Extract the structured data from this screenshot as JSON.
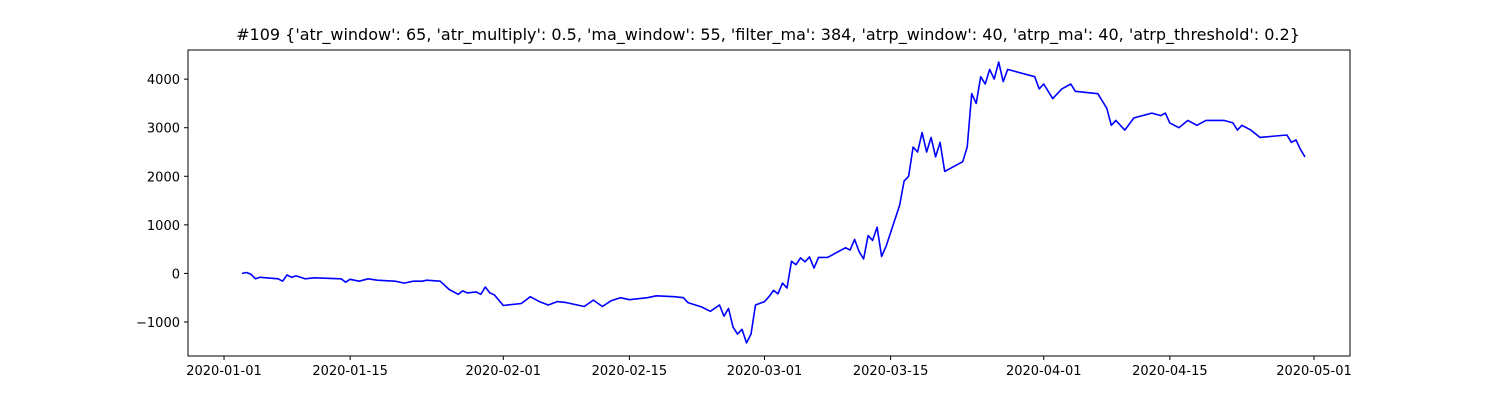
{
  "chart_data": {
    "type": "line",
    "title": "#109 {'atr_window': 65, 'atr_multiply': 0.5, 'ma_window': 55, 'filter_ma': 384, 'atrp_window': 40, 'atrp_ma': 40, 'atrp_threshold': 0.2}",
    "xlabel": "",
    "ylabel": "",
    "xlim": [
      "2019-12-28",
      "2020-05-05"
    ],
    "ylim": [
      -1700,
      4600
    ],
    "x_ticks": [
      "2020-01-01",
      "2020-01-15",
      "2020-02-01",
      "2020-02-15",
      "2020-03-01",
      "2020-03-15",
      "2020-04-01",
      "2020-04-15",
      "2020-05-01"
    ],
    "y_ticks": [
      -1000,
      0,
      1000,
      2000,
      3000,
      4000
    ],
    "y_tick_labels": [
      "−1000",
      "0",
      "1000",
      "2000",
      "3000",
      "4000"
    ],
    "grid": false,
    "series": [
      {
        "color": "#0000ff",
        "points": [
          [
            "2020-01-03",
            0
          ],
          [
            "2020-01-03T12",
            20
          ],
          [
            "2020-01-04",
            -20
          ],
          [
            "2020-01-04T12",
            -110
          ],
          [
            "2020-01-05",
            -80
          ],
          [
            "2020-01-07",
            -110
          ],
          [
            "2020-01-07T12",
            -160
          ],
          [
            "2020-01-08",
            -30
          ],
          [
            "2020-01-08T12",
            -80
          ],
          [
            "2020-01-09",
            -50
          ],
          [
            "2020-01-10",
            -110
          ],
          [
            "2020-01-11",
            -90
          ],
          [
            "2020-01-14",
            -110
          ],
          [
            "2020-01-14T12",
            -180
          ],
          [
            "2020-01-15",
            -120
          ],
          [
            "2020-01-16",
            -160
          ],
          [
            "2020-01-17",
            -110
          ],
          [
            "2020-01-18",
            -140
          ],
          [
            "2020-01-20",
            -160
          ],
          [
            "2020-01-21",
            -200
          ],
          [
            "2020-01-22",
            -160
          ],
          [
            "2020-01-23",
            -160
          ],
          [
            "2020-01-23T12",
            -140
          ],
          [
            "2020-01-25",
            -160
          ],
          [
            "2020-01-26",
            -330
          ],
          [
            "2020-01-27",
            -430
          ],
          [
            "2020-01-27T12",
            -360
          ],
          [
            "2020-01-28",
            -400
          ],
          [
            "2020-01-29",
            -380
          ],
          [
            "2020-01-29T12",
            -430
          ],
          [
            "2020-01-30",
            -280
          ],
          [
            "2020-01-30T12",
            -400
          ],
          [
            "2020-01-31",
            -440
          ],
          [
            "2020-02-01",
            -660
          ],
          [
            "2020-02-03",
            -620
          ],
          [
            "2020-02-04",
            -480
          ],
          [
            "2020-02-05",
            -580
          ],
          [
            "2020-02-06",
            -650
          ],
          [
            "2020-02-07",
            -580
          ],
          [
            "2020-02-08",
            -600
          ],
          [
            "2020-02-10",
            -680
          ],
          [
            "2020-02-11",
            -550
          ],
          [
            "2020-02-12",
            -680
          ],
          [
            "2020-02-13",
            -560
          ],
          [
            "2020-02-14",
            -500
          ],
          [
            "2020-02-15",
            -540
          ],
          [
            "2020-02-17",
            -500
          ],
          [
            "2020-02-18",
            -460
          ],
          [
            "2020-02-20",
            -480
          ],
          [
            "2020-02-21",
            -500
          ],
          [
            "2020-02-21T12",
            -600
          ],
          [
            "2020-02-23",
            -690
          ],
          [
            "2020-02-24",
            -780
          ],
          [
            "2020-02-25",
            -650
          ],
          [
            "2020-02-25T12",
            -880
          ],
          [
            "2020-02-26",
            -720
          ],
          [
            "2020-02-26T12",
            -1100
          ],
          [
            "2020-02-27",
            -1250
          ],
          [
            "2020-02-27T12",
            -1150
          ],
          [
            "2020-02-28",
            -1430
          ],
          [
            "2020-02-28T12",
            -1250
          ],
          [
            "2020-02-29",
            -650
          ],
          [
            "2020-03-01",
            -580
          ],
          [
            "2020-03-01T12",
            -480
          ],
          [
            "2020-03-02",
            -350
          ],
          [
            "2020-03-02T12",
            -420
          ],
          [
            "2020-03-03",
            -200
          ],
          [
            "2020-03-03T12",
            -300
          ],
          [
            "2020-03-04",
            250
          ],
          [
            "2020-03-04T12",
            180
          ],
          [
            "2020-03-05",
            320
          ],
          [
            "2020-03-05T12",
            240
          ],
          [
            "2020-03-06",
            340
          ],
          [
            "2020-03-06T12",
            110
          ],
          [
            "2020-03-07",
            330
          ],
          [
            "2020-03-08",
            330
          ],
          [
            "2020-03-10",
            530
          ],
          [
            "2020-03-10T12",
            480
          ],
          [
            "2020-03-11",
            700
          ],
          [
            "2020-03-11T12",
            450
          ],
          [
            "2020-03-12",
            300
          ],
          [
            "2020-03-12T12",
            780
          ],
          [
            "2020-03-13",
            680
          ],
          [
            "2020-03-13T12",
            950
          ],
          [
            "2020-03-14",
            350
          ],
          [
            "2020-03-14T12",
            560
          ],
          [
            "2020-03-16",
            1400
          ],
          [
            "2020-03-16T12",
            1900
          ],
          [
            "2020-03-17",
            2000
          ],
          [
            "2020-03-17T12",
            2600
          ],
          [
            "2020-03-18",
            2500
          ],
          [
            "2020-03-18T12",
            2900
          ],
          [
            "2020-03-19",
            2500
          ],
          [
            "2020-03-19T12",
            2800
          ],
          [
            "2020-03-20",
            2400
          ],
          [
            "2020-03-20T12",
            2700
          ],
          [
            "2020-03-21",
            2100
          ],
          [
            "2020-03-23",
            2300
          ],
          [
            "2020-03-23T12",
            2600
          ],
          [
            "2020-03-24",
            3700
          ],
          [
            "2020-03-24T12",
            3500
          ],
          [
            "2020-03-25",
            4050
          ],
          [
            "2020-03-25T12",
            3900
          ],
          [
            "2020-03-26",
            4200
          ],
          [
            "2020-03-26T12",
            4000
          ],
          [
            "2020-03-27",
            4350
          ],
          [
            "2020-03-27T12",
            3950
          ],
          [
            "2020-03-28",
            4200
          ],
          [
            "2020-03-31",
            4050
          ],
          [
            "2020-03-31T12",
            3800
          ],
          [
            "2020-04-01",
            3900
          ],
          [
            "2020-04-02",
            3600
          ],
          [
            "2020-04-03",
            3800
          ],
          [
            "2020-04-04",
            3900
          ],
          [
            "2020-04-04T12",
            3750
          ],
          [
            "2020-04-07",
            3700
          ],
          [
            "2020-04-08",
            3400
          ],
          [
            "2020-04-08T12",
            3050
          ],
          [
            "2020-04-09",
            3150
          ],
          [
            "2020-04-10",
            2950
          ],
          [
            "2020-04-11",
            3200
          ],
          [
            "2020-04-13",
            3300
          ],
          [
            "2020-04-14",
            3250
          ],
          [
            "2020-04-14T12",
            3300
          ],
          [
            "2020-04-15",
            3100
          ],
          [
            "2020-04-16",
            3000
          ],
          [
            "2020-04-17",
            3150
          ],
          [
            "2020-04-18",
            3050
          ],
          [
            "2020-04-19",
            3150
          ],
          [
            "2020-04-21",
            3150
          ],
          [
            "2020-04-22",
            3100
          ],
          [
            "2020-04-22T12",
            2950
          ],
          [
            "2020-04-23",
            3050
          ],
          [
            "2020-04-24",
            2950
          ],
          [
            "2020-04-25",
            2800
          ],
          [
            "2020-04-28",
            2850
          ],
          [
            "2020-04-28T12",
            2700
          ],
          [
            "2020-04-29",
            2750
          ],
          [
            "2020-04-29T12",
            2550
          ],
          [
            "2020-04-30",
            2400
          ]
        ]
      }
    ]
  }
}
